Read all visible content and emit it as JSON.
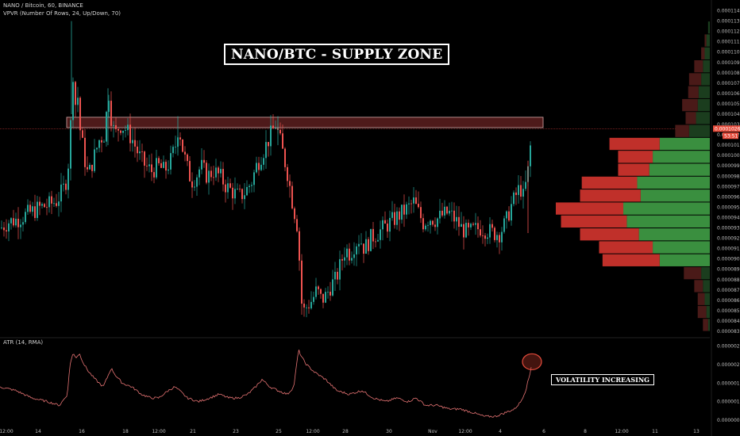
{
  "header": {
    "symbol_line": "NANO / Bitcoin, 60, BINANCE",
    "indicator_line": "VPVR (Number Of Rows, 24, Up/Down, 70)",
    "atr_line": "ATR (14, RMA)"
  },
  "annotations": {
    "title": "NANO/BTC - SUPPLY ZONE",
    "volatility": "VOLATILITY INCREASING"
  },
  "colors": {
    "up": "#26a69a",
    "down": "#ef5350",
    "atr_line": "#e57373",
    "supply_zone_fill": "#4e1a1a",
    "vp_up": "#3a8f3f",
    "vp_down": "#c0302a",
    "price_label": "#e74c3c"
  },
  "chart_data": [
    {
      "type": "candlestick",
      "title": "NANO / Bitcoin, 60, BINANCE",
      "ylim": [
        8.3e-05,
        0.0001145
      ],
      "y_ticks": [
        "0.0001140",
        "0.0001130",
        "0.0001120",
        "0.0001110",
        "0.0001100",
        "0.0001090",
        "0.0001080",
        "0.0001070",
        "0.0001060",
        "0.0001050",
        "0.0001040",
        "0.0001030",
        "0.0001020",
        "0.0001010",
        "0.0001000",
        "0.0000990",
        "0.0000980",
        "0.0000970",
        "0.0000960",
        "0.0000950",
        "0.0000940",
        "0.0000930",
        "0.0000920",
        "0.0000910",
        "0.0000900",
        "0.0000890",
        "0.0000880",
        "0.0000870",
        "0.0000860",
        "0.0000850",
        "0.0000840",
        "0.0000830"
      ],
      "x_ticks": [
        "12:00",
        "14",
        "16",
        "18",
        "12:00",
        "21",
        "23",
        "25",
        "12:00",
        "28",
        "30",
        "Nov",
        "12:00",
        "4",
        "6",
        "8",
        "12:00",
        "11",
        "13"
      ],
      "price_label": "0.0001026",
      "countdown_label": "53:51",
      "supply_zone": {
        "y_low": 0.0001027,
        "y_high": 0.0001037
      },
      "price_series": [
        [
          0,
          9.3e-05
        ],
        [
          10,
          9.36e-05
        ],
        [
          20,
          9.38e-05
        ],
        [
          30,
          9.42e-05
        ],
        [
          40,
          9.46e-05
        ],
        [
          50,
          9.5e-05
        ],
        [
          60,
          9.52e-05
        ],
        [
          70,
          9.56e-05
        ],
        [
          78,
          9.66e-05
        ],
        [
          84,
          9.8e-05
        ],
        [
          88,
          0.000103
        ],
        [
          90,
          0.00011
        ],
        [
          93,
          0.000104
        ],
        [
          96,
          0.000107
        ],
        [
          99,
          0.000103
        ],
        [
          102,
          0.0001015
        ],
        [
          106,
          9.95e-05
        ],
        [
          110,
          9.8e-05
        ],
        [
          114,
          9.9e-05
        ],
        [
          118,
          0.0001
        ],
        [
          124,
          0.0001015
        ],
        [
          130,
          0.000102
        ],
        [
          136,
          0.000106
        ],
        [
          140,
          0.000103
        ],
        [
          144,
          0.000102
        ],
        [
          150,
          0.000103
        ],
        [
          158,
          0.0001025
        ],
        [
          166,
          0.0001015
        ],
        [
          174,
          0.0001
        ],
        [
          182,
          9.9e-05
        ],
        [
          190,
          9.85e-05
        ],
        [
          198,
          9.9e-05
        ],
        [
          206,
          9.85e-05
        ],
        [
          214,
          9.95e-05
        ],
        [
          220,
          0.000101
        ],
        [
          224,
          0.000103
        ],
        [
          228,
          0.000101
        ],
        [
          234,
          9.9e-05
        ],
        [
          240,
          9.75e-05
        ],
        [
          246,
          9.8e-05
        ],
        [
          252,
          9.9e-05
        ],
        [
          260,
          9.8e-05
        ],
        [
          268,
          9.85e-05
        ],
        [
          276,
          9.8e-05
        ],
        [
          284,
          9.7e-05
        ],
        [
          292,
          9.65e-05
        ],
        [
          300,
          9.6e-05
        ],
        [
          308,
          9.65e-05
        ],
        [
          316,
          9.75e-05
        ],
        [
          322,
          9.9e-05
        ],
        [
          328,
          0.0001
        ],
        [
          334,
          0.000101
        ],
        [
          340,
          0.000102
        ],
        [
          346,
          0.000103
        ],
        [
          350,
          0.000102
        ],
        [
          356,
          0.0001
        ],
        [
          362,
          9.8e-05
        ],
        [
          366,
          9.6e-05
        ],
        [
          370,
          9.45e-05
        ],
        [
          374,
          9.3e-05
        ],
        [
          376,
          9e-05
        ],
        [
          378,
          8.6e-05
        ],
        [
          382,
          8.5e-05
        ],
        [
          386,
          8.55e-05
        ],
        [
          392,
          8.6e-05
        ],
        [
          398,
          8.7e-05
        ],
        [
          404,
          8.6e-05
        ],
        [
          410,
          8.65e-05
        ],
        [
          416,
          8.75e-05
        ],
        [
          422,
          8.8e-05
        ],
        [
          428,
          8.95e-05
        ],
        [
          434,
          9.1e-05
        ],
        [
          440,
          9.05e-05
        ],
        [
          446,
          9.15e-05
        ],
        [
          452,
          9.2e-05
        ],
        [
          458,
          9.1e-05
        ],
        [
          466,
          9.2e-05
        ],
        [
          474,
          9.25e-05
        ],
        [
          482,
          9.3e-05
        ],
        [
          490,
          9.35e-05
        ],
        [
          498,
          9.4e-05
        ],
        [
          506,
          9.45e-05
        ],
        [
          514,
          9.5e-05
        ],
        [
          520,
          9.55e-05
        ],
        [
          526,
          9.45e-05
        ],
        [
          532,
          9.35e-05
        ],
        [
          540,
          9.4e-05
        ],
        [
          548,
          9.38e-05
        ],
        [
          556,
          9.42e-05
        ],
        [
          564,
          9.45e-05
        ],
        [
          572,
          9.38e-05
        ],
        [
          580,
          9.3e-05
        ],
        [
          588,
          9.25e-05
        ],
        [
          596,
          9.28e-05
        ],
        [
          604,
          9.3e-05
        ],
        [
          612,
          9.28e-05
        ],
        [
          620,
          9.25e-05
        ],
        [
          628,
          9.25e-05
        ],
        [
          636,
          9.35e-05
        ],
        [
          642,
          9.5e-05
        ],
        [
          648,
          9.6e-05
        ],
        [
          654,
          9.7e-05
        ],
        [
          658,
          9.6e-05
        ],
        [
          662,
          9.75e-05
        ],
        [
          666,
          9.95e-05
        ],
        [
          669,
          0.0001035
        ]
      ],
      "candle_step_px": 3
    },
    {
      "type": "bar",
      "title": "VPVR (Number Of Rows, 24, Up/Down, 70)",
      "orientation": "horizontal",
      "row_price_high": 0.000113,
      "row_price_step": 1.25e-06,
      "series": [
        {
          "name": "Up",
          "values": [
            2,
            4,
            6,
            8,
            10,
            13,
            14,
            16,
            24,
            58,
            66,
            70,
            84,
            80,
            100,
            96,
            82,
            66,
            58,
            10,
            8,
            6,
            4,
            2
          ]
        },
        {
          "name": "Down",
          "values": [
            0,
            2,
            4,
            10,
            14,
            12,
            18,
            12,
            16,
            58,
            40,
            36,
            64,
            70,
            78,
            76,
            68,
            62,
            66,
            20,
            10,
            8,
            10,
            6
          ]
        }
      ]
    },
    {
      "type": "line",
      "title": "ATR (14, RMA)",
      "ylim": [
        5e-07,
        2.6e-06
      ],
      "y_ticks": [
        "0.0000025",
        "0.0000020",
        "0.0000015",
        "0.0000010",
        "0.0000005"
      ],
      "highlight_x": 670,
      "series": [
        {
          "values": [
            [
              0,
              1.4e-06
            ],
            [
              20,
              1.3e-06
            ],
            [
              40,
              1.1e-06
            ],
            [
              60,
              1e-06
            ],
            [
              75,
              9e-07
            ],
            [
              85,
              1.2e-06
            ],
            [
              88,
              2e-06
            ],
            [
              92,
              2.3e-06
            ],
            [
              96,
              2.2e-06
            ],
            [
              100,
              2.3e-06
            ],
            [
              106,
              2e-06
            ],
            [
              112,
              1.8e-06
            ],
            [
              120,
              1.6e-06
            ],
            [
              130,
              1.4e-06
            ],
            [
              136,
              1.7e-06
            ],
            [
              140,
              1.9e-06
            ],
            [
              146,
              1.7e-06
            ],
            [
              154,
              1.5e-06
            ],
            [
              166,
              1.4e-06
            ],
            [
              178,
              1.2e-06
            ],
            [
              190,
              1.1e-06
            ],
            [
              200,
              1.1e-06
            ],
            [
              212,
              1.3e-06
            ],
            [
              220,
              1.4e-06
            ],
            [
              226,
              1.3e-06
            ],
            [
              236,
              1.1e-06
            ],
            [
              250,
              1e-06
            ],
            [
              264,
              1.1e-06
            ],
            [
              276,
              1.2e-06
            ],
            [
              288,
              1.1e-06
            ],
            [
              300,
              1.1e-06
            ],
            [
              312,
              1.2e-06
            ],
            [
              322,
              1.4e-06
            ],
            [
              330,
              1.6e-06
            ],
            [
              340,
              1.4e-06
            ],
            [
              350,
              1.3e-06
            ],
            [
              362,
              1.2e-06
            ],
            [
              370,
              1.4e-06
            ],
            [
              376,
              2.4e-06
            ],
            [
              380,
              2.2e-06
            ],
            [
              386,
              2e-06
            ],
            [
              396,
              1.8e-06
            ],
            [
              410,
              1.6e-06
            ],
            [
              424,
              1.3e-06
            ],
            [
              440,
              1.2e-06
            ],
            [
              456,
              1.3e-06
            ],
            [
              470,
              1.1e-06
            ],
            [
              486,
              1e-06
            ],
            [
              500,
              1.1e-06
            ],
            [
              514,
              1e-06
            ],
            [
              524,
              1.1e-06
            ],
            [
              536,
              9e-07
            ],
            [
              550,
              9e-07
            ],
            [
              566,
              8e-07
            ],
            [
              580,
              8e-07
            ],
            [
              596,
              7e-07
            ],
            [
              610,
              6e-07
            ],
            [
              624,
              6e-07
            ],
            [
              636,
              7e-07
            ],
            [
              648,
              8e-07
            ],
            [
              656,
              1e-06
            ],
            [
              662,
              1.3e-06
            ],
            [
              668,
              1.8e-06
            ],
            [
              670,
              2.1e-06
            ]
          ]
        }
      ]
    }
  ]
}
